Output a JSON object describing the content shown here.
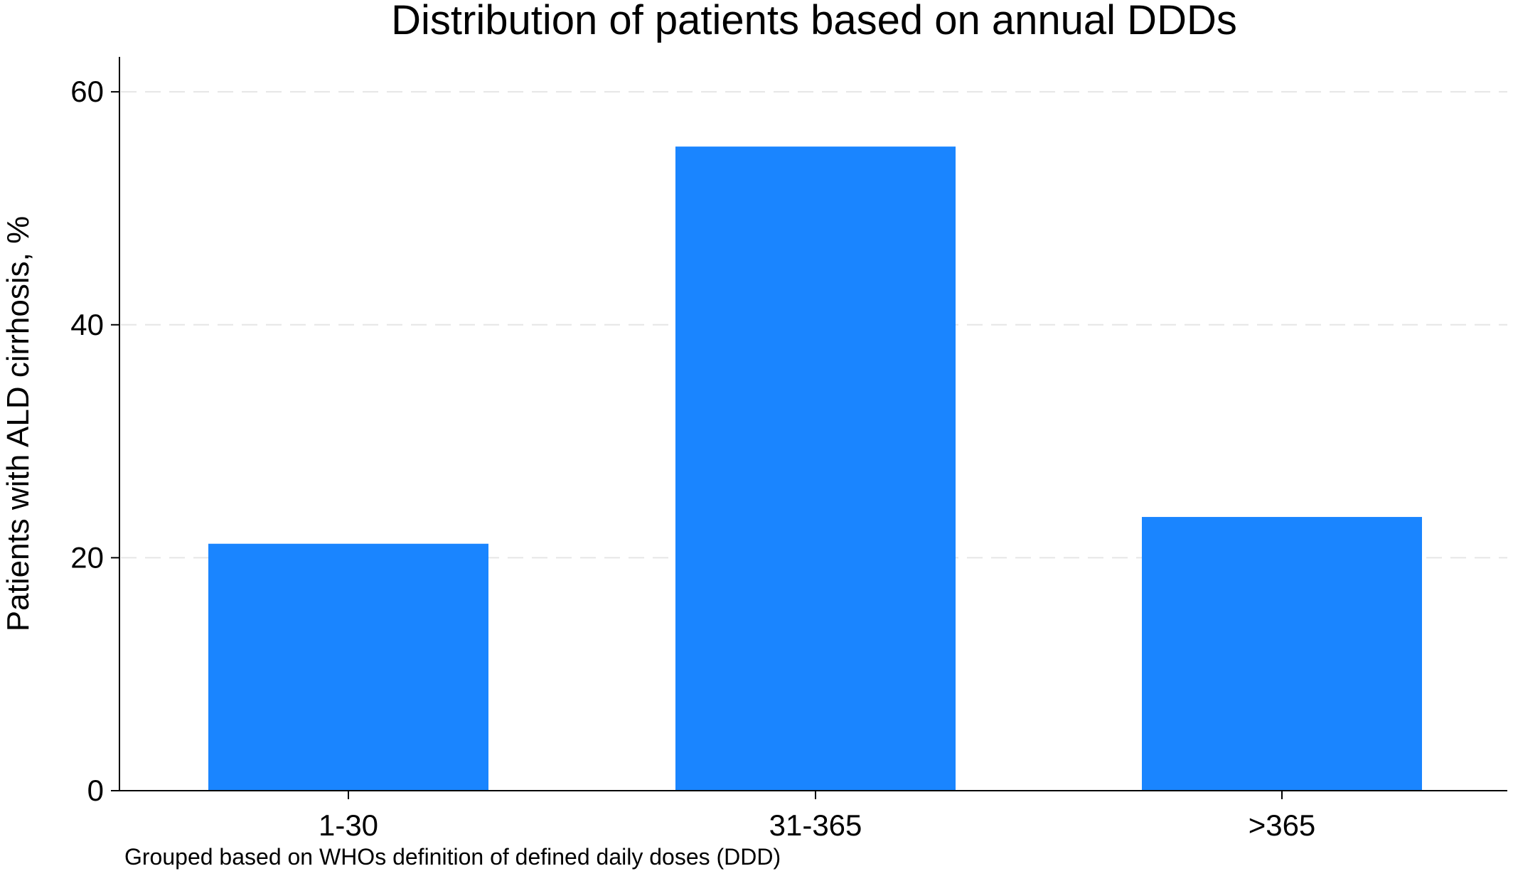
{
  "chart_data": {
    "type": "bar",
    "title": "Distribution of patients based on annual DDDs",
    "xlabel": "Grouped based on WHOs definition of defined daily doses (DDD)",
    "ylabel": "Patients with ALD cirrhosis, %",
    "categories": [
      "1-30",
      "31-365",
      ">365"
    ],
    "values": [
      21.2,
      55.3,
      23.5
    ],
    "ylim": [
      0,
      63
    ],
    "yticks": [
      0,
      20,
      40,
      60
    ],
    "ytick_labels": [
      "0",
      "20",
      "40",
      "60"
    ],
    "grid": true,
    "bar_color": "#1a85ff"
  }
}
